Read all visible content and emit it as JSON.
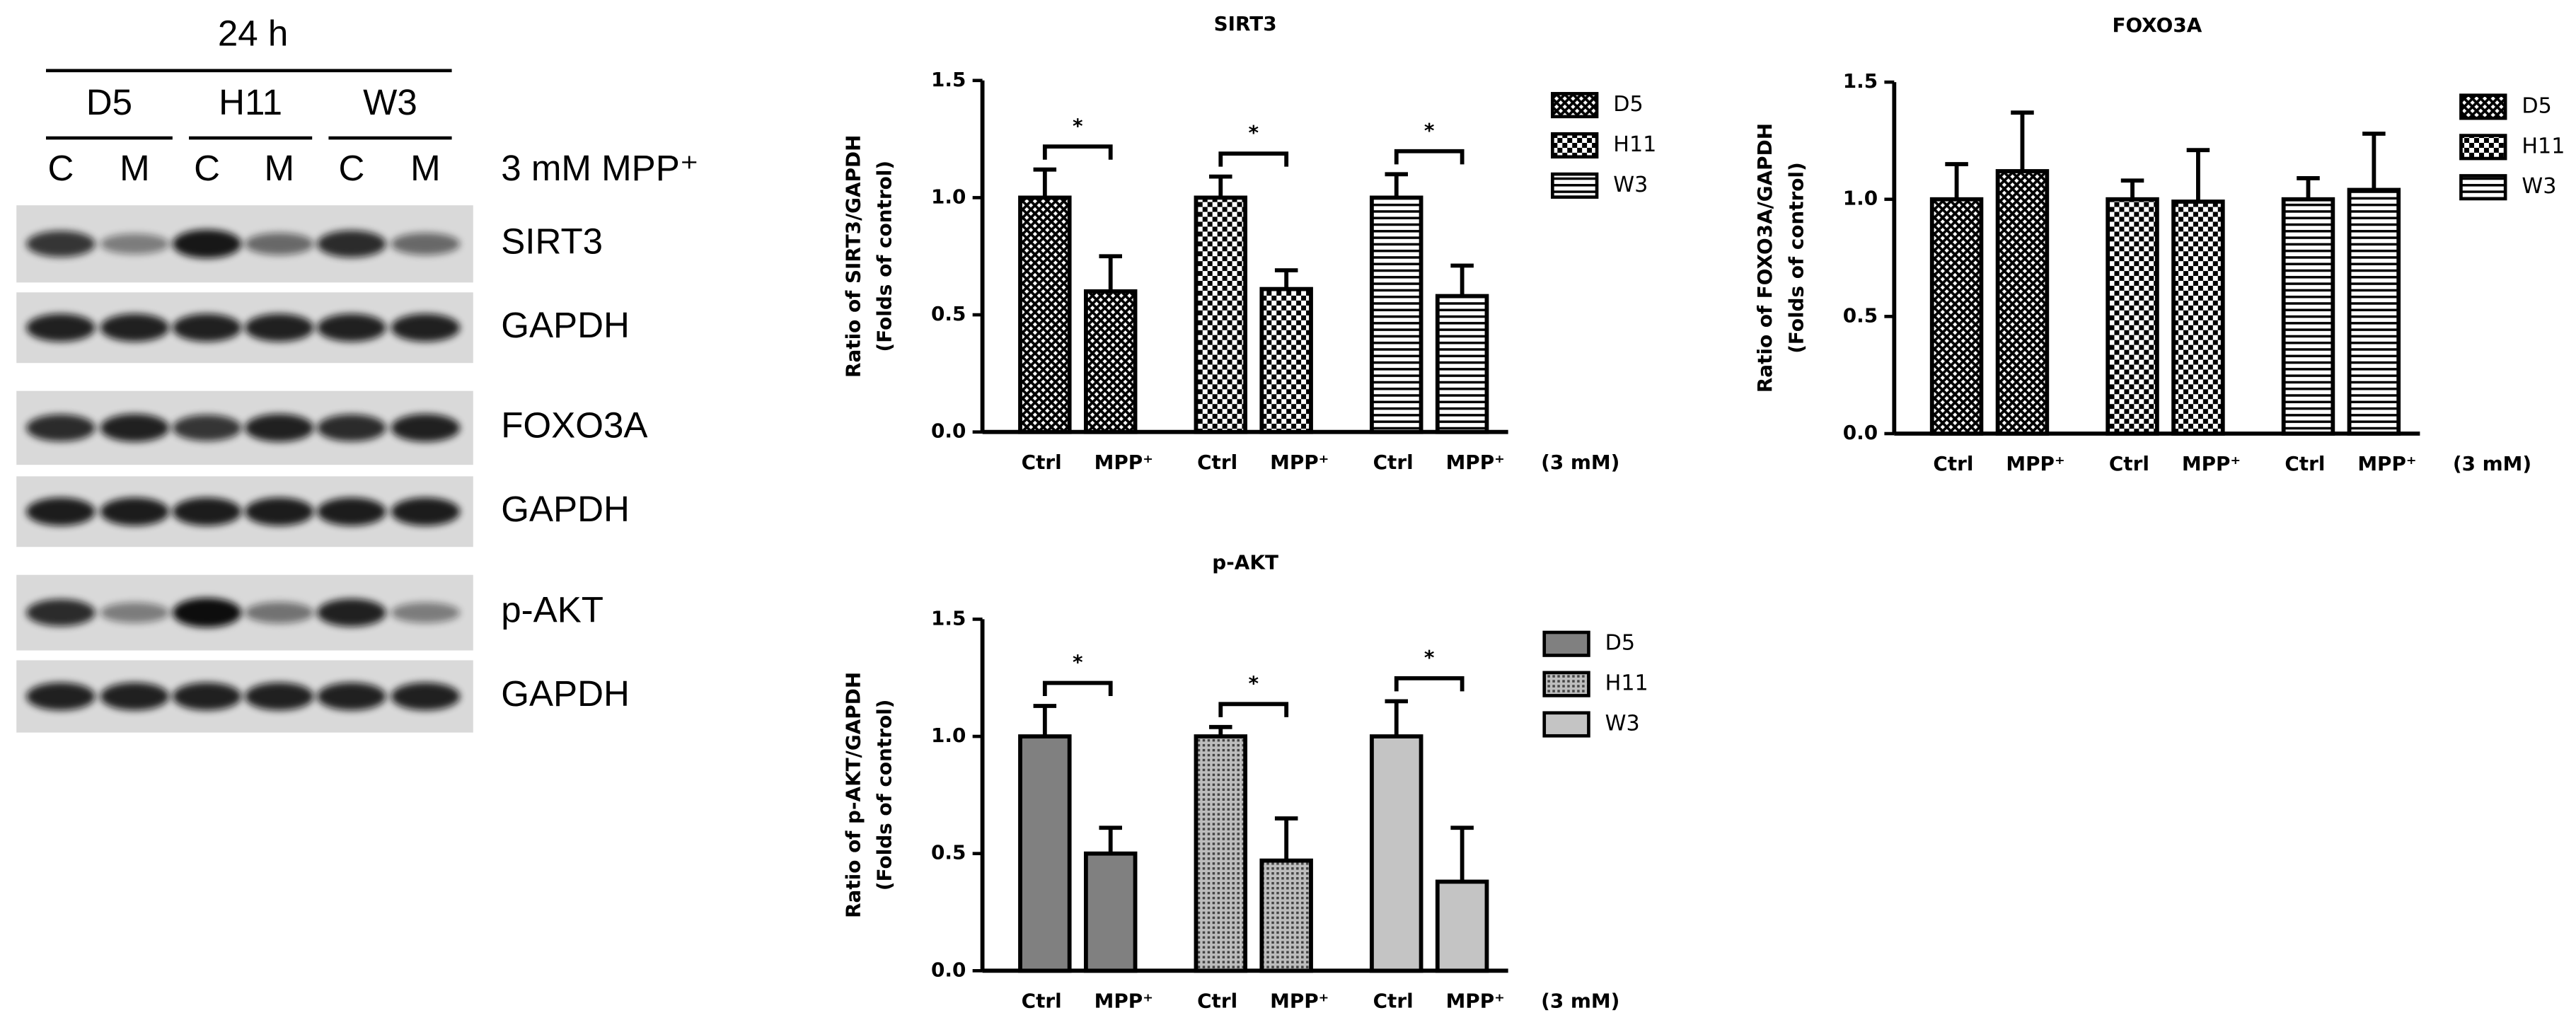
{
  "blot": {
    "title": "24 h",
    "groups": [
      "D5",
      "H11",
      "W3"
    ],
    "lanes": [
      "C",
      "M",
      "C",
      "M",
      "C",
      "M"
    ],
    "treatment": "3 mM MPP⁺",
    "bands": [
      "SIRT3",
      "GAPDH",
      "FOXO3A",
      "GAPDH",
      "p-AKT",
      "GAPDH"
    ]
  },
  "chart_data": [
    {
      "type": "bar",
      "title": "SIRT3",
      "ylabel": [
        "Ratio of SIRT3/GAPDH",
        "(Folds of control)"
      ],
      "categories": [
        "Ctrl",
        "MPP⁺"
      ],
      "note": "(3 mM)",
      "series": [
        {
          "name": "D5",
          "color": "#000000",
          "pattern": "crosshatch",
          "values": [
            1.0,
            0.6
          ],
          "errors": [
            0.12,
            0.15
          ]
        },
        {
          "name": "H11",
          "color": "#000000",
          "pattern": "checker",
          "values": [
            1.0,
            0.61
          ],
          "errors": [
            0.09,
            0.08
          ]
        },
        {
          "name": "W3",
          "color": "#000000",
          "pattern": "hlines",
          "values": [
            1.0,
            0.58
          ],
          "errors": [
            0.1,
            0.13
          ]
        }
      ],
      "significance": [
        "*",
        "*",
        "*"
      ],
      "ylim": [
        0,
        1.5
      ],
      "yticks": [
        {
          "value": 0,
          "label": "0.0"
        },
        {
          "value": 0.5,
          "label": "0.5"
        },
        {
          "value": 1,
          "label": "1.0"
        },
        {
          "value": 1.5,
          "label": "1.5"
        }
      ]
    },
    {
      "type": "bar",
      "title": "FOXO3A",
      "ylabel": [
        "Ratio of FOXO3A/GAPDH",
        "(Folds of control)"
      ],
      "categories": [
        "Ctrl",
        "MPP⁺"
      ],
      "note": "(3 mM)",
      "series": [
        {
          "name": "D5",
          "color": "#000000",
          "pattern": "crosshatch",
          "values": [
            1.0,
            1.12
          ],
          "errors": [
            0.15,
            0.25
          ]
        },
        {
          "name": "H11",
          "color": "#000000",
          "pattern": "checker",
          "values": [
            1.0,
            0.99
          ],
          "errors": [
            0.08,
            0.22
          ]
        },
        {
          "name": "W3",
          "color": "#000000",
          "pattern": "hlines",
          "values": [
            1.0,
            1.04
          ],
          "errors": [
            0.09,
            0.24
          ]
        }
      ],
      "ylim": [
        0,
        1.5
      ],
      "yticks": [
        {
          "value": 0,
          "label": "0.0"
        },
        {
          "value": 0.5,
          "label": "0.5"
        },
        {
          "value": 1,
          "label": "1.0"
        },
        {
          "value": 1.5,
          "label": "1.5"
        }
      ]
    },
    {
      "type": "bar",
      "title": "p-AKT",
      "ylabel": [
        "Ratio of p-AKT/GAPDH",
        "(Folds of control)"
      ],
      "categories": [
        "Ctrl",
        "MPP⁺"
      ],
      "note": "(3 mM)",
      "series": [
        {
          "name": "D5",
          "color": "#808080",
          "values": [
            1.0,
            0.5
          ],
          "errors": [
            0.13,
            0.11
          ]
        },
        {
          "name": "H11",
          "color": "#9a9a9a",
          "pattern": "dots",
          "values": [
            1.0,
            0.47
          ],
          "errors": [
            0.04,
            0.18
          ]
        },
        {
          "name": "W3",
          "color": "#c4c4c4",
          "values": [
            1.0,
            0.38
          ],
          "errors": [
            0.15,
            0.23
          ]
        }
      ],
      "significance": [
        "*",
        "*",
        "*"
      ],
      "ylim": [
        0,
        1.5
      ],
      "yticks": [
        {
          "value": 0,
          "label": "0.0"
        },
        {
          "value": 0.5,
          "label": "0.5"
        },
        {
          "value": 1,
          "label": "1.0"
        },
        {
          "value": 1.5,
          "label": "1.5"
        }
      ]
    }
  ]
}
